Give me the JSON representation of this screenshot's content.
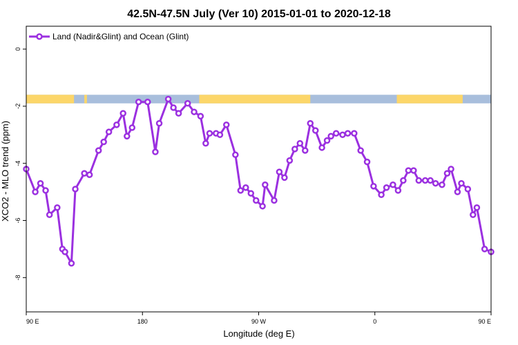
{
  "chart_data": {
    "type": "line",
    "title": "42.5N-47.5N July (Ver 10)   2015-01-01 to 2020-12-18",
    "xlabel": "Longitude (deg E)",
    "ylabel": "XCO2 - MLO trend (ppm)",
    "xlim": [
      90,
      450
    ],
    "ylim": [
      -9.2,
      0.8
    ],
    "x_ticks": [
      {
        "value": 90,
        "label": "90 E"
      },
      {
        "value": 180,
        "label": "180"
      },
      {
        "value": 270,
        "label": "90 W"
      },
      {
        "value": 360,
        "label": "0"
      },
      {
        "value": 450,
        "label": "90 E"
      },
      {
        "value": 540,
        "label": "180"
      }
    ],
    "y_ticks": [
      {
        "value": 0,
        "label": "0"
      },
      {
        "value": -2,
        "label": "-2"
      },
      {
        "value": -4,
        "label": "-4"
      },
      {
        "value": -6,
        "label": "-6"
      },
      {
        "value": -8,
        "label": "-8"
      }
    ],
    "grid": false,
    "legend_position": "top-left",
    "colors": {
      "series": "#9B30E0",
      "land": "#FCD669",
      "ocean": "#A8BEDC"
    },
    "land_ocean_strip": {
      "y_range": [
        -1.9,
        -1.6
      ],
      "land_segments": [
        [
          90,
          127
        ],
        [
          135,
          137
        ],
        [
          224,
          310
        ],
        [
          377,
          428
        ],
        [
          479,
          488
        ],
        [
          494,
          522
        ],
        [
          536,
          540
        ]
      ]
    },
    "series": [
      {
        "name": "Land (Nadir&Glint) and Ocean (Glint)",
        "x": [
          90,
          97,
          101,
          105,
          108,
          114,
          118,
          120,
          125,
          128,
          135,
          139,
          146,
          150,
          154,
          160,
          165,
          168,
          172,
          177,
          184,
          190,
          193,
          200,
          204,
          208,
          215,
          220,
          225,
          229,
          232,
          237,
          240,
          245,
          252,
          256,
          260,
          264,
          268,
          273,
          275,
          282,
          286,
          290,
          294,
          298,
          302,
          306,
          310,
          314,
          319,
          323,
          326,
          330,
          335,
          339,
          344,
          349,
          354,
          359,
          365,
          369,
          374,
          378,
          382,
          386,
          390,
          394,
          399,
          403,
          407,
          412,
          416,
          419,
          424,
          427,
          432,
          436,
          439,
          445,
          450
        ],
        "values": [
          -4.2,
          -5.0,
          -4.7,
          -4.95,
          -5.8,
          -5.55,
          -7.0,
          -7.1,
          -7.5,
          -4.9,
          -4.35,
          -4.4,
          -3.55,
          -3.25,
          -2.9,
          -2.65,
          -2.25,
          -3.05,
          -2.75,
          -1.85,
          -1.85,
          -3.6,
          -2.6,
          -1.75,
          -2.05,
          -2.25,
          -1.9,
          -2.2,
          -2.35,
          -3.3,
          -2.95,
          -2.95,
          -3.0,
          -2.65,
          -3.7,
          -4.95,
          -4.85,
          -5.05,
          -5.3,
          -5.5,
          -4.75,
          -5.3,
          -4.3,
          -4.5,
          -3.9,
          -3.5,
          -3.3,
          -3.55,
          -2.6,
          -2.85,
          -3.45,
          -3.2,
          -3.05,
          -2.95,
          -3.0,
          -2.95,
          -2.95,
          -3.55,
          -3.95,
          -4.8,
          -5.1,
          -4.85,
          -4.75,
          -4.95,
          -4.6,
          -4.25,
          -4.25,
          -4.6,
          -4.6,
          -4.6,
          -4.7,
          -4.75,
          -4.35,
          -4.2,
          -5.0,
          -4.7,
          -4.9,
          -5.8,
          -5.55,
          -7.0,
          -7.1
        ]
      }
    ]
  }
}
